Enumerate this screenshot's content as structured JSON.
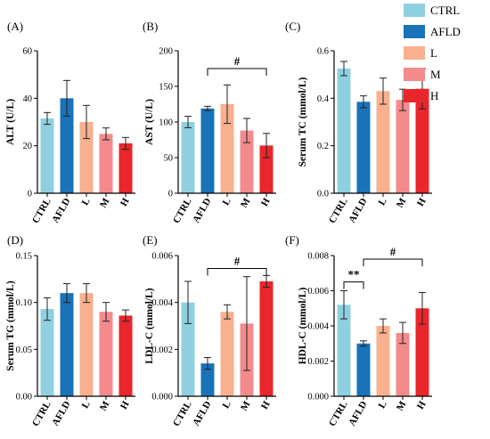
{
  "colors": {
    "CTRL": "#8fd0e0",
    "AFLD": "#1a72b8",
    "L": "#f8b08e",
    "M": "#f38b8c",
    "H": "#e8262b"
  },
  "legend": [
    {
      "name": "CTRL",
      "color": "#8fd0e0"
    },
    {
      "name": "AFLD",
      "color": "#1a72b8"
    },
    {
      "name": "L",
      "color": "#f8b08e"
    },
    {
      "name": "M",
      "color": "#f38b8c"
    },
    {
      "name": "H",
      "color": "#e8262b"
    }
  ],
  "chart_data": [
    {
      "type": "bar",
      "panel": "(A)",
      "ylabel": "ALT (U/L)",
      "categories": [
        "CTRL",
        "AFLD",
        "L",
        "M",
        "H"
      ],
      "values": [
        31.5,
        40,
        30,
        25,
        21
      ],
      "errors": [
        2.5,
        7.5,
        7,
        2.5,
        2.5
      ],
      "ylim": [
        0,
        60
      ],
      "yticks": [
        "0",
        "20",
        "40",
        "60"
      ],
      "significance": []
    },
    {
      "type": "bar",
      "panel": "(B)",
      "ylabel": "AST (U/L)",
      "categories": [
        "CTRL",
        "AFLD",
        "L",
        "M",
        "H"
      ],
      "values": [
        100,
        119,
        125,
        88,
        67
      ],
      "errors": [
        8,
        3,
        27,
        17,
        17
      ],
      "ylim": [
        0,
        200
      ],
      "yticks": [
        "0",
        "50",
        "100",
        "150",
        "200"
      ],
      "significance": [
        {
          "from": 1,
          "to": 4,
          "y": 175,
          "text": "#"
        }
      ]
    },
    {
      "type": "bar",
      "panel": "(C)",
      "ylabel": "Serum TC (mmol/L)",
      "categories": [
        "CTRL",
        "AFLD",
        "L",
        "M",
        "H"
      ],
      "values": [
        0.525,
        0.385,
        0.43,
        0.393,
        0.44
      ],
      "errors": [
        0.03,
        0.025,
        0.055,
        0.045,
        0.085
      ],
      "ylim": [
        0,
        0.6
      ],
      "yticks": [
        "0.0",
        "0.2",
        "0.4",
        "0.6"
      ],
      "significance": []
    },
    {
      "type": "bar",
      "panel": "(D)",
      "ylabel": "Serum TG (mmol/L)",
      "categories": [
        "CTRL",
        "AFLD",
        "L",
        "M",
        "H"
      ],
      "values": [
        0.093,
        0.11,
        0.11,
        0.09,
        0.086
      ],
      "errors": [
        0.012,
        0.01,
        0.01,
        0.01,
        0.006
      ],
      "ylim": [
        0,
        0.15
      ],
      "yticks": [
        "0.00",
        "0.05",
        "0.10",
        "0.15"
      ],
      "significance": []
    },
    {
      "type": "bar",
      "panel": "(E)",
      "ylabel": "LDL-C (mmol/L)",
      "categories": [
        "CTRL",
        "AFLD",
        "L",
        "M",
        "H"
      ],
      "values": [
        0.004,
        0.0014,
        0.0036,
        0.0031,
        0.0049
      ],
      "errors": [
        0.0009,
        0.00025,
        0.0003,
        0.002,
        0.00025
      ],
      "ylim": [
        0,
        0.006
      ],
      "yticks": [
        "0.000",
        "0.002",
        "0.004",
        "0.006"
      ],
      "significance": [
        {
          "from": 1,
          "to": 4,
          "y": 0.00545,
          "text": "#"
        }
      ]
    },
    {
      "type": "bar",
      "panel": "(F)",
      "ylabel": "HDL-C (mmol/L)",
      "categories": [
        "CTRL",
        "AFLD",
        "L",
        "M",
        "H"
      ],
      "values": [
        0.0052,
        0.003,
        0.004,
        0.0036,
        0.005
      ],
      "errors": [
        0.0008,
        0.00015,
        0.0004,
        0.0006,
        0.0009
      ],
      "ylim": [
        0,
        0.008
      ],
      "yticks": [
        "0.000",
        "0.002",
        "0.004",
        "0.006",
        "0.008"
      ],
      "significance": [
        {
          "from": 0,
          "to": 1,
          "y": 0.0065,
          "text": "**"
        },
        {
          "from": 1,
          "to": 4,
          "y": 0.0078,
          "text": "#"
        }
      ]
    }
  ]
}
